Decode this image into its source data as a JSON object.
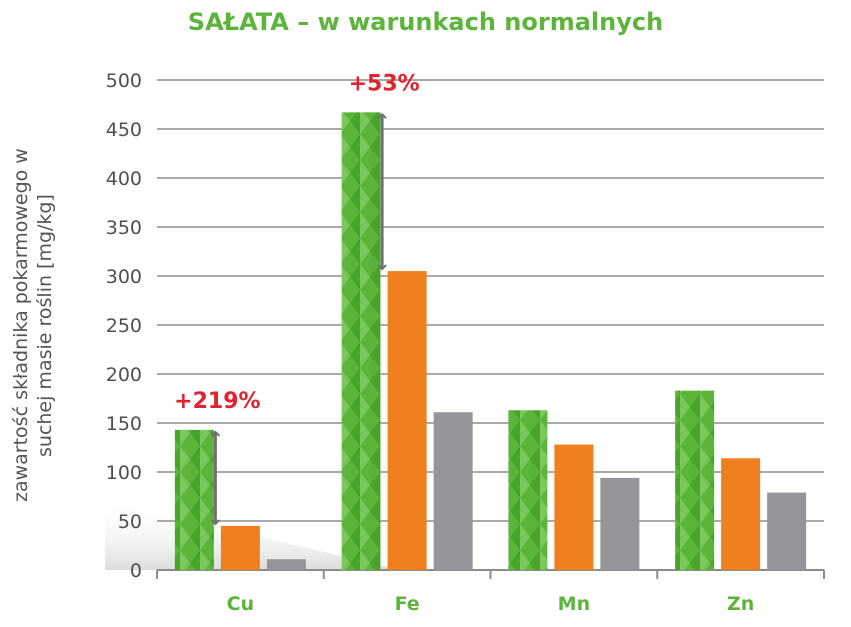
{
  "colors": {
    "title": "#5cb53a",
    "green": "#5cb53a",
    "orange": "#f07f1e",
    "gray": "#939598",
    "annotation": "#e0242f",
    "grid": "#a9a9a9"
  },
  "chart_data": {
    "type": "bar",
    "title": "SAŁATA – w warunkach normalnych",
    "xlabel": "",
    "ylabel_lines": [
      "zawartość składnika pokarmowego w",
      "suchej masie roślin [mg/kg]"
    ],
    "ylim": [
      0,
      500
    ],
    "yticks": [
      "0",
      "50",
      "100",
      "150",
      "200",
      "250",
      "300",
      "350",
      "400",
      "450",
      "500"
    ],
    "grid": true,
    "categories": [
      "Cu",
      "Fe",
      "Mn",
      "Zn"
    ],
    "series": [
      {
        "values": [
          143,
          467,
          163,
          183
        ]
      },
      {
        "values": [
          45,
          305,
          128,
          114
        ]
      },
      {
        "values": [
          11,
          161,
          94,
          79
        ]
      }
    ],
    "annotations": [
      {
        "text": "+219%",
        "category": "Cu",
        "from": 45,
        "to": 143
      },
      {
        "text": "+53%",
        "category": "Fe",
        "from": 305,
        "to": 467
      }
    ]
  }
}
